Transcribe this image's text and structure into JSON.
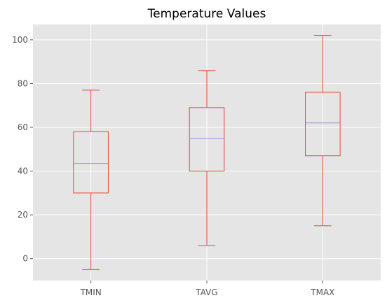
{
  "chart_data": {
    "type": "box",
    "title": "Temperature Values",
    "xlabel": "",
    "ylabel": "",
    "categories": [
      "TMIN",
      "TAVG",
      "TMAX"
    ],
    "boxes": [
      {
        "label": "TMIN",
        "whisker_low": -5,
        "q1": 30,
        "median": 43.5,
        "q3": 58,
        "whisker_high": 77
      },
      {
        "label": "TAVG",
        "whisker_low": 6,
        "q1": 40,
        "median": 55,
        "q3": 69,
        "whisker_high": 86
      },
      {
        "label": "TMAX",
        "whisker_low": 15,
        "q1": 47,
        "median": 62,
        "q3": 76,
        "whisker_high": 102
      }
    ],
    "ylim": [
      -10,
      107
    ],
    "yticks": [
      0,
      20,
      40,
      60,
      80,
      100
    ],
    "grid": true,
    "colors": {
      "box": "#E24A33",
      "median": "#8EBA42",
      "median_alt": "#988ED5",
      "background": "#E5E5E5",
      "grid": "#FFFFFF"
    }
  }
}
